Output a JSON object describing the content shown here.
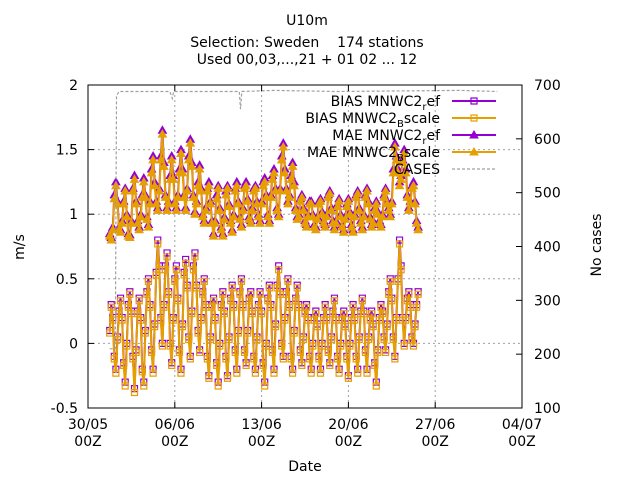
{
  "chart_data": {
    "type": "line",
    "title_lines": [
      "U10m",
      "Selection: Sweden    174 stations",
      "Used 00,03,...,21 + 01 02 ... 12"
    ],
    "xlabel": "Date",
    "ylabel": "m/s",
    "y2label": "No cases",
    "ylim": [
      -0.5,
      2
    ],
    "y2lim": [
      100,
      700
    ],
    "yticks": [
      "-0.5",
      "0",
      "0.5",
      "1",
      "1.5",
      "2"
    ],
    "y2ticks": [
      "100",
      "200",
      "300",
      "400",
      "500",
      "600",
      "700"
    ],
    "xticks": [
      {
        "day": 0,
        "line1": "30/05",
        "line2": "00Z"
      },
      {
        "day": 7,
        "line1": "06/06",
        "line2": "00Z"
      },
      {
        "day": 14,
        "line1": "13/06",
        "line2": "00Z"
      },
      {
        "day": 21,
        "line1": "20/06",
        "line2": "00Z"
      },
      {
        "day": 28,
        "line1": "27/06",
        "line2": "00Z"
      },
      {
        "day": 35,
        "line1": "04/07",
        "line2": "00Z"
      }
    ],
    "legend_position": "top-right",
    "legend": [
      {
        "key": "bias_ref",
        "main": "BIAS MNWC2",
        "sub": "r",
        "tail": "ef",
        "sub_dir": "down"
      },
      {
        "key": "bias_scale",
        "main": "BIAS MNWC2",
        "sub": "B",
        "tail": "scale",
        "sub_dir": "down"
      },
      {
        "key": "mae_ref",
        "main": "MAE MNWC2",
        "sub": "r",
        "tail": "ef",
        "sub_dir": "down"
      },
      {
        "key": "mae_scale",
        "main": "MAE MNWC2",
        "sub": "B",
        "tail": "scale",
        "sub_dir": "down"
      },
      {
        "key": "cases",
        "main": "CASES",
        "sub": "",
        "tail": "",
        "sub_dir": "none"
      }
    ],
    "colors": {
      "ref": "#9400d3",
      "scale": "#e69f00",
      "cases": "#a0a0a0"
    },
    "x_start_day": 1.75,
    "x_step_hours": 3,
    "series": [
      {
        "key": "mae_ref",
        "axis": "y",
        "marker": "triangle",
        "color": "ref",
        "values": [
          0.85,
          0.82,
          0.9,
          1.15,
          1.25,
          1.1,
          0.9,
          0.88,
          0.95,
          1.1,
          1.2,
          1.0,
          0.85,
          0.84,
          0.95,
          1.2,
          1.3,
          1.1,
          0.95,
          0.9,
          1.0,
          1.15,
          1.28,
          1.15,
          0.98,
          0.92,
          1.1,
          1.35,
          1.45,
          1.25,
          1.1,
          1.05,
          1.2,
          1.45,
          1.65,
          1.4,
          1.15,
          1.05,
          1.1,
          1.3,
          1.45,
          1.3,
          1.1,
          1.05,
          1.15,
          1.35,
          1.5,
          1.35,
          1.15,
          1.05,
          1.2,
          1.45,
          1.58,
          1.4,
          1.15,
          1.02,
          1.1,
          1.25,
          1.38,
          1.2,
          1.0,
          0.95,
          1.05,
          1.2,
          1.25,
          1.1,
          0.95,
          0.85,
          0.95,
          1.15,
          1.22,
          1.05,
          0.9,
          0.85,
          0.98,
          1.18,
          1.22,
          1.08,
          0.95,
          0.88,
          1.0,
          1.2,
          1.25,
          1.1,
          0.98,
          0.92,
          1.05,
          1.22,
          1.25,
          1.12,
          0.98,
          0.95,
          1.05,
          1.2,
          1.22,
          1.1,
          1.0,
          0.95,
          1.1,
          1.25,
          1.28,
          1.15,
          1.0,
          0.95,
          1.15,
          1.3,
          1.35,
          1.2,
          1.05,
          1.0,
          1.2,
          1.45,
          1.55,
          1.35,
          1.2,
          1.1,
          1.15,
          1.3,
          1.4,
          1.25,
          1.05,
          0.98,
          1.0,
          1.12,
          1.15,
          1.05,
          0.95,
          0.92,
          1.0,
          1.1,
          1.1,
          1.0,
          0.92,
          0.9,
          0.98,
          1.1,
          1.12,
          1.02,
          0.95,
          0.92,
          1.0,
          1.15,
          1.18,
          1.05,
          0.95,
          0.9,
          0.95,
          1.08,
          1.12,
          1.0,
          0.92,
          0.88,
          0.98,
          1.08,
          1.12,
          1.02,
          0.92,
          0.88,
          1.0,
          1.15,
          1.18,
          1.05,
          0.95,
          0.9,
          1.0,
          1.15,
          1.2,
          1.1,
          0.98,
          0.92,
          0.95,
          1.05,
          1.1,
          1.02,
          0.95,
          0.92,
          1.0,
          1.15,
          1.2,
          1.1,
          1.05,
          1.0,
          1.1,
          1.35,
          1.55,
          1.45,
          1.35,
          1.25,
          1.3,
          1.42,
          1.5,
          1.35,
          1.15,
          1.05,
          1.1,
          1.22,
          1.25,
          1.1,
          0.95,
          0.9
        ]
      },
      {
        "key": "mae_scale",
        "axis": "y",
        "marker": "triangle",
        "color": "scale",
        "values": [
          0.83,
          0.8,
          0.88,
          1.12,
          1.22,
          1.08,
          0.88,
          0.86,
          0.93,
          1.08,
          1.18,
          0.98,
          0.83,
          0.82,
          0.93,
          1.18,
          1.27,
          1.08,
          0.93,
          0.88,
          0.98,
          1.13,
          1.25,
          1.13,
          0.96,
          0.9,
          1.08,
          1.32,
          1.42,
          1.22,
          1.08,
          1.03,
          1.18,
          1.42,
          1.62,
          1.37,
          1.13,
          1.03,
          1.08,
          1.27,
          1.42,
          1.27,
          1.08,
          1.03,
          1.13,
          1.32,
          1.47,
          1.32,
          1.13,
          1.03,
          1.18,
          1.42,
          1.55,
          1.37,
          1.13,
          1.0,
          1.08,
          1.22,
          1.35,
          1.18,
          0.98,
          0.93,
          1.03,
          1.18,
          1.22,
          1.08,
          0.93,
          0.83,
          0.93,
          1.12,
          1.2,
          1.03,
          0.88,
          0.83,
          0.96,
          1.15,
          1.2,
          1.06,
          0.93,
          0.86,
          0.98,
          1.18,
          1.22,
          1.08,
          0.96,
          0.9,
          1.03,
          1.2,
          1.22,
          1.1,
          0.96,
          0.93,
          1.03,
          1.18,
          1.2,
          1.08,
          0.98,
          0.93,
          1.08,
          1.22,
          1.25,
          1.13,
          0.98,
          0.93,
          1.13,
          1.27,
          1.32,
          1.18,
          1.03,
          0.98,
          1.18,
          1.42,
          1.52,
          1.32,
          1.18,
          1.08,
          1.13,
          1.27,
          1.37,
          1.22,
          1.03,
          0.96,
          0.98,
          1.1,
          1.13,
          1.03,
          0.93,
          0.9,
          0.98,
          1.08,
          1.08,
          0.98,
          0.9,
          0.88,
          0.96,
          1.08,
          1.1,
          1.0,
          0.93,
          0.9,
          0.98,
          1.13,
          1.16,
          1.03,
          0.93,
          0.88,
          0.93,
          1.06,
          1.1,
          0.98,
          0.9,
          0.86,
          0.96,
          1.06,
          1.1,
          1.0,
          0.9,
          0.86,
          0.98,
          1.13,
          1.16,
          1.03,
          0.93,
          0.88,
          0.98,
          1.13,
          1.18,
          1.08,
          0.96,
          0.9,
          0.93,
          1.03,
          1.08,
          1.0,
          0.93,
          0.9,
          0.98,
          1.13,
          1.18,
          1.08,
          1.03,
          0.98,
          1.08,
          1.32,
          1.52,
          1.42,
          1.32,
          1.22,
          1.27,
          1.4,
          1.47,
          1.32,
          1.13,
          1.03,
          1.08,
          1.2,
          1.22,
          1.08,
          0.93,
          0.88
        ]
      },
      {
        "key": "bias_ref",
        "axis": "y",
        "marker": "square",
        "color": "ref",
        "values": [
          0.1,
          0.3,
          0.2,
          -0.1,
          -0.2,
          0.05,
          0.25,
          0.35,
          0.2,
          -0.15,
          -0.3,
          0.0,
          0.3,
          0.4,
          0.25,
          -0.1,
          -0.35,
          -0.05,
          0.25,
          0.35,
          0.2,
          -0.2,
          -0.3,
          0.1,
          0.4,
          0.5,
          0.3,
          -0.05,
          -0.2,
          0.15,
          0.55,
          0.8,
          0.6,
          0.2,
          0.0,
          0.3,
          0.6,
          0.7,
          0.4,
          0.0,
          -0.15,
          0.2,
          0.5,
          0.6,
          0.35,
          -0.05,
          -0.2,
          0.15,
          0.55,
          0.65,
          0.45,
          0.05,
          -0.1,
          0.25,
          0.6,
          0.7,
          0.45,
          0.1,
          -0.05,
          0.2,
          0.4,
          0.5,
          0.3,
          -0.1,
          -0.25,
          0.05,
          0.3,
          0.35,
          0.2,
          -0.15,
          -0.3,
          0.0,
          0.3,
          0.4,
          0.25,
          -0.1,
          -0.25,
          0.05,
          0.35,
          0.45,
          0.3,
          -0.05,
          -0.2,
          0.1,
          0.4,
          0.5,
          0.3,
          -0.05,
          -0.15,
          0.1,
          0.35,
          0.4,
          0.25,
          -0.1,
          -0.2,
          0.05,
          0.3,
          0.4,
          0.25,
          -0.15,
          -0.3,
          0.0,
          0.35,
          0.45,
          0.3,
          -0.05,
          -0.2,
          0.15,
          0.45,
          0.6,
          0.4,
          0.0,
          -0.1,
          0.2,
          0.4,
          0.5,
          0.3,
          -0.1,
          -0.2,
          0.1,
          0.35,
          0.45,
          0.3,
          -0.05,
          -0.15,
          0.05,
          0.25,
          0.3,
          0.2,
          -0.1,
          -0.2,
          0.0,
          0.2,
          0.25,
          0.15,
          -0.1,
          -0.2,
          0.0,
          0.2,
          0.3,
          0.2,
          -0.05,
          -0.15,
          0.05,
          0.25,
          0.35,
          0.2,
          -0.1,
          -0.2,
          0.0,
          0.2,
          0.25,
          0.15,
          -0.1,
          -0.25,
          0.0,
          0.2,
          0.3,
          0.2,
          -0.1,
          -0.2,
          0.05,
          0.25,
          0.35,
          0.25,
          -0.05,
          -0.2,
          0.05,
          0.2,
          0.25,
          0.15,
          -0.15,
          -0.3,
          -0.05,
          0.2,
          0.3,
          0.25,
          0.05,
          -0.05,
          0.15,
          0.4,
          0.5,
          0.35,
          0.05,
          -0.1,
          0.2,
          0.5,
          0.8,
          0.6,
          0.2,
          0.0,
          0.2,
          0.35,
          0.4,
          0.3,
          0.05,
          0.0,
          0.15,
          0.3,
          0.4
        ]
      },
      {
        "key": "bias_scale",
        "axis": "y",
        "marker": "square",
        "color": "scale",
        "values": [
          0.08,
          0.28,
          0.18,
          -0.12,
          -0.23,
          0.03,
          0.23,
          0.33,
          0.18,
          -0.17,
          -0.33,
          -0.02,
          0.28,
          0.38,
          0.23,
          -0.12,
          -0.38,
          -0.07,
          0.23,
          0.33,
          0.18,
          -0.22,
          -0.33,
          0.08,
          0.38,
          0.48,
          0.28,
          -0.07,
          -0.23,
          0.13,
          0.53,
          0.77,
          0.57,
          0.18,
          -0.02,
          0.28,
          0.57,
          0.67,
          0.38,
          -0.02,
          -0.17,
          0.18,
          0.48,
          0.57,
          0.33,
          -0.07,
          -0.23,
          0.13,
          0.53,
          0.62,
          0.43,
          0.03,
          -0.12,
          0.23,
          0.57,
          0.67,
          0.43,
          0.08,
          -0.07,
          0.18,
          0.38,
          0.48,
          0.28,
          -0.12,
          -0.27,
          0.03,
          0.28,
          0.33,
          0.18,
          -0.17,
          -0.33,
          -0.02,
          0.28,
          0.38,
          0.23,
          -0.12,
          -0.27,
          0.03,
          0.33,
          0.43,
          0.28,
          -0.07,
          -0.23,
          0.08,
          0.38,
          0.48,
          0.28,
          -0.07,
          -0.17,
          0.08,
          0.33,
          0.38,
          0.23,
          -0.12,
          -0.23,
          0.03,
          0.28,
          0.38,
          0.23,
          -0.17,
          -0.33,
          -0.02,
          0.33,
          0.43,
          0.28,
          -0.07,
          -0.23,
          0.13,
          0.43,
          0.57,
          0.38,
          -0.02,
          -0.12,
          0.18,
          0.38,
          0.48,
          0.28,
          -0.12,
          -0.23,
          0.08,
          0.33,
          0.43,
          0.28,
          -0.07,
          -0.17,
          0.03,
          0.23,
          0.28,
          0.18,
          -0.12,
          -0.23,
          -0.02,
          0.18,
          0.23,
          0.13,
          -0.12,
          -0.23,
          -0.02,
          0.18,
          0.28,
          0.18,
          -0.07,
          -0.17,
          0.03,
          0.23,
          0.33,
          0.18,
          -0.12,
          -0.23,
          -0.02,
          0.18,
          0.23,
          0.13,
          -0.12,
          -0.27,
          -0.02,
          0.18,
          0.28,
          0.18,
          -0.12,
          -0.23,
          0.03,
          0.23,
          0.33,
          0.23,
          -0.07,
          -0.23,
          0.03,
          0.18,
          0.23,
          0.13,
          -0.17,
          -0.33,
          -0.07,
          0.18,
          0.28,
          0.23,
          0.03,
          -0.07,
          0.13,
          0.38,
          0.48,
          0.33,
          0.03,
          -0.12,
          0.18,
          0.48,
          0.77,
          0.57,
          0.18,
          -0.02,
          0.18,
          0.33,
          0.38,
          0.28,
          0.03,
          -0.02,
          0.13,
          0.28,
          0.38
        ]
      },
      {
        "key": "cases",
        "axis": "y2",
        "marker": "none",
        "color": "cases",
        "steps": [
          [
            1.75,
            210
          ],
          [
            2.2,
            210
          ],
          [
            2.3,
            680
          ],
          [
            2.5,
            688
          ],
          [
            6.6,
            688
          ],
          [
            6.8,
            675
          ],
          [
            6.9,
            688
          ],
          [
            12.2,
            688
          ],
          [
            12.3,
            655
          ],
          [
            12.4,
            688
          ],
          [
            15.0,
            690
          ],
          [
            20.0,
            688
          ],
          [
            30.0,
            690
          ],
          [
            33.0,
            688
          ]
        ]
      }
    ]
  }
}
